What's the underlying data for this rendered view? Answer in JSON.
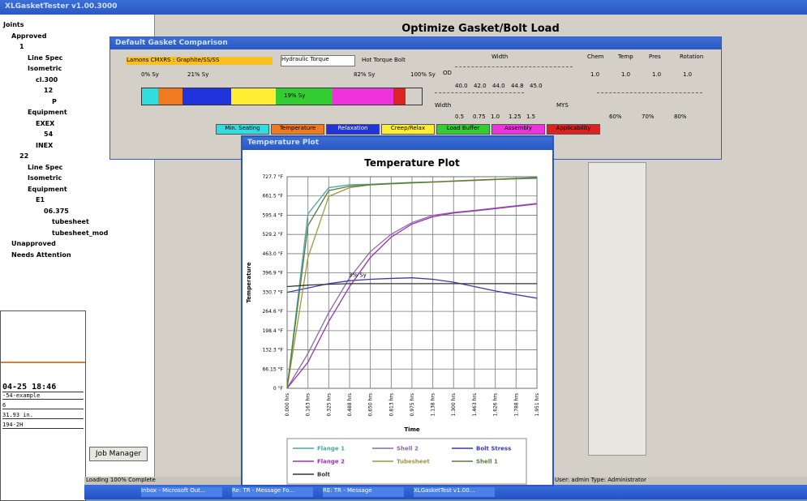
{
  "window": {
    "title": "XLGasketTester v1.00.3000"
  },
  "tree": {
    "items": [
      "Joints",
      "Approved",
      "1",
      "Line Spec",
      "Isometric",
      "cl.300",
      "12",
      "P",
      "Equipment",
      "EXEX",
      "54",
      "INEX",
      "22",
      "Line Spec",
      "Isometric",
      "Equipment",
      "E1",
      "06.375",
      "tubesheet",
      "tubesheet_mod",
      "Unapproved",
      "Needs Attention"
    ]
  },
  "header": {
    "title": "Optimize Gasket/Bolt Load"
  },
  "gasket_dialog": {
    "title": "Default Gasket Comparison",
    "gasket_label": "Lamons CMXRS : Graphite/SS/SS",
    "torque_method": "Hydraulic Torque",
    "hot_torque": "Hot Torque Bolt",
    "bar_labels": [
      "0% Sy",
      "21% Sy",
      "82% Sy",
      "100% Sy"
    ],
    "segment_label": "19% Sy",
    "width_label": "Width",
    "od_label": "OD",
    "od_ticks": [
      "40.0",
      "42.0",
      "44.0",
      "44.8",
      "45.0"
    ],
    "width2_label": "Width",
    "width_ticks": [
      "0.5",
      "0.75",
      "1.0",
      "1.25",
      "1.5"
    ],
    "mys_label": "MYS",
    "mys_ticks": [
      "60%",
      "70%",
      "80%"
    ],
    "columns": [
      "Chem",
      "Temp",
      "Pres",
      "Rotation"
    ],
    "column_values": [
      "1.0",
      "1.0",
      "1.0",
      "1.0"
    ],
    "legend": [
      {
        "label": "Min. Seating",
        "color": "#33dddd"
      },
      {
        "label": "Temperature",
        "color": "#f07a20"
      },
      {
        "label": "Relaxation",
        "color": "#2233dd"
      },
      {
        "label": "Creep/Relax",
        "color": "#ffee33"
      },
      {
        "label": "Load Buffer",
        "color": "#33cc33"
      },
      {
        "label": "Assembly",
        "color": "#ee33dd"
      },
      {
        "label": "Applicability",
        "color": "#dd2222"
      }
    ]
  },
  "temperature_window": {
    "title": "Temperature Plot",
    "chart_data": {
      "type": "line",
      "title": "Temperature Plot",
      "x_label": "Time",
      "y_label": "Temperature",
      "x": [
        0,
        0.163,
        0.325,
        0.488,
        0.65,
        0.813,
        0.975,
        1.138,
        1.3,
        1.463,
        1.626,
        1.788,
        1.951
      ],
      "xlim": [
        0,
        1.951
      ],
      "xticks": [
        {
          "value": 0,
          "label": "0.000 hrs"
        },
        {
          "value": 0.163,
          "label": "0.163 hrs"
        },
        {
          "value": 0.325,
          "label": "0.325 hrs"
        },
        {
          "value": 0.488,
          "label": "0.488 hrs"
        },
        {
          "value": 0.65,
          "label": "0.650 hrs"
        },
        {
          "value": 0.813,
          "label": "0.813 hrs"
        },
        {
          "value": 0.975,
          "label": "0.975 hrs"
        },
        {
          "value": 1.138,
          "label": "1.138 hrs"
        },
        {
          "value": 1.3,
          "label": "1.300 hrs"
        },
        {
          "value": 1.463,
          "label": "1.463 hrs"
        },
        {
          "value": 1.626,
          "label": "1.626 hrs"
        },
        {
          "value": 1.788,
          "label": "1.788 hrs"
        },
        {
          "value": 1.951,
          "label": "1.951 hrs"
        }
      ],
      "ylim": [
        0,
        727.7
      ],
      "yticks": [
        {
          "value": 0,
          "label": "0 °F"
        },
        {
          "value": 66.15,
          "label": "66.15 °F"
        },
        {
          "value": 132.3,
          "label": "132.3 °F"
        },
        {
          "value": 198.4,
          "label": "198.4 °F"
        },
        {
          "value": 264.6,
          "label": "264.6 °F"
        },
        {
          "value": 330.7,
          "label": "330.7 °F"
        },
        {
          "value": 396.9,
          "label": "396.9 °F"
        },
        {
          "value": 463,
          "label": "463.0 °F"
        },
        {
          "value": 529.2,
          "label": "529.2 °F"
        },
        {
          "value": 595.4,
          "label": "595.4 °F"
        },
        {
          "value": 661.5,
          "label": "661.5 °F"
        },
        {
          "value": 727.7,
          "label": "727.7 °F"
        }
      ],
      "grid": true,
      "annotation": {
        "text": "3% Sy",
        "x": 0.55,
        "y": 372
      },
      "series": [
        {
          "name": "Flange 1",
          "color": "#4aa6a6",
          "values": [
            0,
            600,
            690,
            700,
            702,
            705,
            708,
            710,
            712,
            715,
            718,
            720,
            722
          ]
        },
        {
          "name": "Shell 2",
          "color": "#8a6aa8",
          "values": [
            0,
            120,
            260,
            380,
            470,
            530,
            570,
            595,
            605,
            612,
            620,
            628,
            636
          ]
        },
        {
          "name": "Bolt Stress",
          "color": "#3a3aa8",
          "values": [
            330,
            345,
            360,
            370,
            375,
            378,
            380,
            375,
            365,
            350,
            335,
            322,
            310
          ]
        },
        {
          "name": "Flange 2",
          "color": "#9933aa",
          "values": [
            0,
            90,
            230,
            350,
            450,
            520,
            565,
            590,
            603,
            610,
            618,
            626,
            634
          ]
        },
        {
          "name": "Tubesheet",
          "color": "#9a9a40",
          "values": [
            0,
            450,
            660,
            690,
            700,
            703,
            706,
            709,
            712,
            715,
            718,
            721,
            724
          ]
        },
        {
          "name": "Shell 1",
          "color": "#5a7a3a",
          "values": [
            0,
            560,
            680,
            695,
            700,
            704,
            707,
            710,
            713,
            716,
            719,
            722,
            725
          ]
        },
        {
          "name": "Bolt",
          "color": "#333333",
          "values": [
            350,
            355,
            358,
            360,
            360,
            360,
            360,
            360,
            360,
            360,
            360,
            360,
            360
          ]
        }
      ]
    }
  },
  "background_doc": {
    "lines": [
      "04-25 18:46",
      "-54-example",
      "6",
      "31.93 in.",
      "194-2H"
    ]
  },
  "job_manager_button": "Job Manager",
  "status": {
    "left": "Loading 100% Complete",
    "right": "User: admin Type: Administrator"
  },
  "taskbar": {
    "items": [
      "Inbox - Microsoft Out...",
      "Re: TR - Message Fo...",
      "RE: TR - Message",
      "XLGasketTest v1.00..."
    ]
  }
}
